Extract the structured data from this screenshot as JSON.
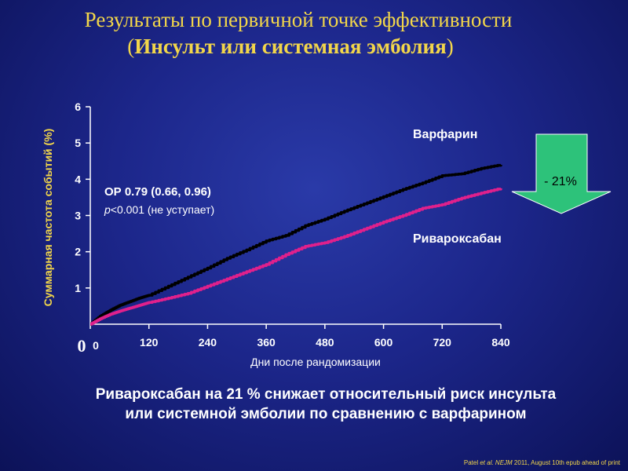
{
  "title": {
    "line1": "Результаты по первичной точке эффективности",
    "line2_open": "(",
    "line2_bold": "Инсульт или системная эмболия",
    "line2_close": ")"
  },
  "chart_data": {
    "type": "line",
    "xlabel": "Дни после рандомизации",
    "ylabel": "Суммарная частота событий (%)",
    "xlim": [
      0,
      840
    ],
    "ylim": [
      0,
      6
    ],
    "x_ticks": [
      "0",
      "120",
      "240",
      "360",
      "480",
      "600",
      "720",
      "840"
    ],
    "y_ticks": [
      "1",
      "2",
      "3",
      "4",
      "5",
      "6"
    ],
    "y_origin_label": "0",
    "series": [
      {
        "name": "Варфарин",
        "color": "#000000",
        "x": [
          0,
          20,
          40,
          60,
          80,
          100,
          120,
          160,
          200,
          240,
          280,
          320,
          360,
          400,
          440,
          480,
          520,
          560,
          600,
          640,
          680,
          720,
          760,
          800,
          840
        ],
        "y": [
          0,
          0.22,
          0.38,
          0.52,
          0.62,
          0.72,
          0.8,
          1.05,
          1.3,
          1.55,
          1.82,
          2.05,
          2.3,
          2.45,
          2.72,
          2.9,
          3.12,
          3.32,
          3.52,
          3.72,
          3.9,
          4.1,
          4.15,
          4.3,
          4.4
        ]
      },
      {
        "name": "Ривароксабан",
        "color": "#e0208c",
        "x": [
          0,
          20,
          40,
          60,
          80,
          100,
          120,
          160,
          200,
          240,
          280,
          320,
          360,
          400,
          440,
          480,
          520,
          560,
          600,
          640,
          680,
          720,
          760,
          800,
          840
        ],
        "y": [
          0,
          0.15,
          0.27,
          0.36,
          0.44,
          0.52,
          0.6,
          0.72,
          0.85,
          1.05,
          1.25,
          1.45,
          1.65,
          1.92,
          2.15,
          2.25,
          2.42,
          2.62,
          2.82,
          3.0,
          3.2,
          3.3,
          3.48,
          3.62,
          3.75
        ]
      }
    ],
    "annotation": {
      "hr": "ОР 0.79 (0.66, 0.96)",
      "p_italic": "p",
      "p_rest": "<0.001 (не уступает)"
    },
    "arrow": {
      "label": "- 21%",
      "color": "#2dc27a"
    }
  },
  "conclusion": {
    "line1": "Ривароксабан на 21 % снижает относительный риск инсульта",
    "line2": "или системной эмболии по сравнению с варфарином"
  },
  "source": {
    "author": "Patel ",
    "etal_journal": "et al. NEJM",
    "rest": " 2011, August 10th epub ahead of print"
  }
}
